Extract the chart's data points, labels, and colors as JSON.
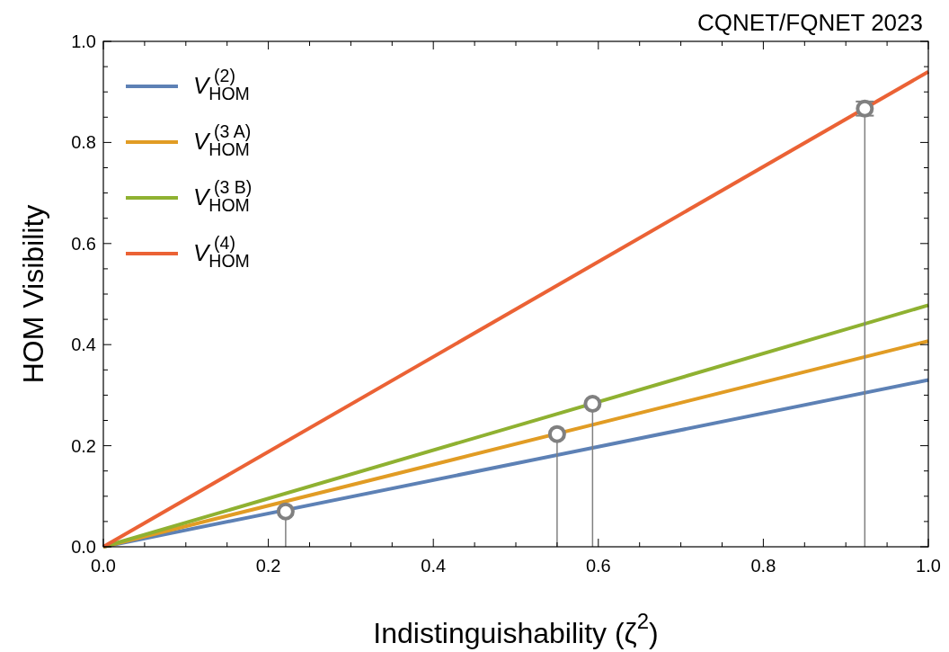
{
  "chart_data": {
    "type": "line",
    "title": "CQNET/FQNET 2023",
    "xlabel": "Indistinguishability (ζ$^{2}$)",
    "ylabel": "HOM Visibility",
    "xlim": [
      0,
      1
    ],
    "ylim": [
      0,
      1
    ],
    "xticks": [
      {
        "value": 0,
        "label": "0.0"
      },
      {
        "value": 0.05,
        "label": null
      },
      {
        "value": 0.1,
        "label": null
      },
      {
        "value": 0.15,
        "label": null
      },
      {
        "value": 0.2,
        "label": "0.2"
      },
      {
        "value": 0.25,
        "label": null
      },
      {
        "value": 0.3,
        "label": null
      },
      {
        "value": 0.35,
        "label": null
      },
      {
        "value": 0.4,
        "label": "0.4"
      },
      {
        "value": 0.45,
        "label": null
      },
      {
        "value": 0.5,
        "label": null
      },
      {
        "value": 0.55,
        "label": null
      },
      {
        "value": 0.6,
        "label": "0.6"
      },
      {
        "value": 0.65,
        "label": null
      },
      {
        "value": 0.7,
        "label": null
      },
      {
        "value": 0.75,
        "label": null
      },
      {
        "value": 0.8,
        "label": "0.8"
      },
      {
        "value": 0.85,
        "label": null
      },
      {
        "value": 0.9,
        "label": null
      },
      {
        "value": 0.95,
        "label": null
      },
      {
        "value": 1,
        "label": "1.0"
      }
    ],
    "yticks": [
      {
        "value": 0,
        "label": "0.0"
      },
      {
        "value": 0.05,
        "label": null
      },
      {
        "value": 0.1,
        "label": null
      },
      {
        "value": 0.15,
        "label": null
      },
      {
        "value": 0.2,
        "label": "0.2"
      },
      {
        "value": 0.25,
        "label": null
      },
      {
        "value": 0.3,
        "label": null
      },
      {
        "value": 0.35,
        "label": null
      },
      {
        "value": 0.4,
        "label": "0.4"
      },
      {
        "value": 0.45,
        "label": null
      },
      {
        "value": 0.5,
        "label": null
      },
      {
        "value": 0.55,
        "label": null
      },
      {
        "value": 0.6,
        "label": "0.6"
      },
      {
        "value": 0.65,
        "label": null
      },
      {
        "value": 0.7,
        "label": null
      },
      {
        "value": 0.75,
        "label": null
      },
      {
        "value": 0.8,
        "label": "0.8"
      },
      {
        "value": 0.85,
        "label": null
      },
      {
        "value": 0.9,
        "label": null
      },
      {
        "value": 0.95,
        "label": null
      },
      {
        "value": 1,
        "label": "1.0"
      }
    ],
    "grid": false,
    "legend": "top left",
    "line_style": "solid",
    "series": [
      {
        "name": "V$_{HOM}$$^{(2)}$",
        "color": "#5d81b5",
        "x": [
          0,
          1
        ],
        "values": [
          0,
          0.33
        ]
      },
      {
        "name": "V$_{HOM}$$^{(3 A)}$",
        "color": "#e19c24",
        "x": [
          0,
          1
        ],
        "values": [
          0,
          0.407
        ]
      },
      {
        "name": "V$_{HOM}$$^{(3 B)}$",
        "color": "#8fb131",
        "x": [
          0,
          1
        ],
        "values": [
          0,
          0.478
        ]
      },
      {
        "name": "V$_{HOM}$$^{(4)}$",
        "color": "#eb6235",
        "x": [
          0,
          1
        ],
        "values": [
          0,
          0.94
        ]
      },
      {
        "color": "#808080",
        "x": [
          0.221,
          0.221
        ],
        "values": [
          0,
          0.07
        ]
      },
      {
        "color": "#808080",
        "x": [
          0.55,
          0.55
        ],
        "values": [
          0,
          0.223
        ]
      },
      {
        "color": "#808080",
        "x": [
          0.593,
          0.593
        ],
        "values": [
          0,
          0.283
        ]
      },
      {
        "color": "#808080",
        "x": [
          0.923,
          0.923
        ],
        "values": [
          0,
          0.867
        ]
      },
      {
        "type": "scatter",
        "color": "#808080",
        "marker": "circle",
        "x": [
          0.221,
          0.55,
          0.593,
          0.923
        ],
        "values": [
          0.07,
          0.223,
          0.283,
          0.867
        ],
        "errors": [
          null,
          null,
          null,
          0.014
        ]
      }
    ]
  }
}
